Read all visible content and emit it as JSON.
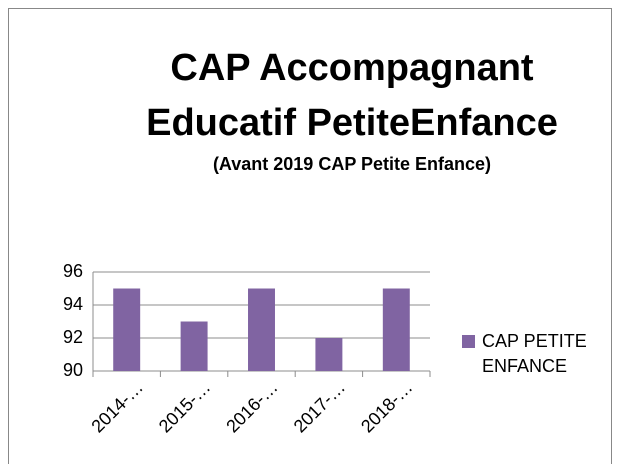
{
  "chart_data": {
    "type": "bar",
    "title": [
      "CAP Accompagnant",
      "Educatif PetiteEnfance"
    ],
    "subtitle": "(Avant 2019 CAP Petite Enfance)",
    "categories": [
      "2014-…",
      "2015-…",
      "2016-…",
      "2017-…",
      "2018-…"
    ],
    "series": [
      {
        "name": "CAP PETITE ENFANCE",
        "color": "#8064a2",
        "values": [
          95,
          93,
          95,
          92,
          95
        ]
      }
    ],
    "ylim": [
      90,
      96
    ],
    "yticks": [
      90,
      92,
      94,
      96
    ],
    "grid": true,
    "legend": "right"
  }
}
